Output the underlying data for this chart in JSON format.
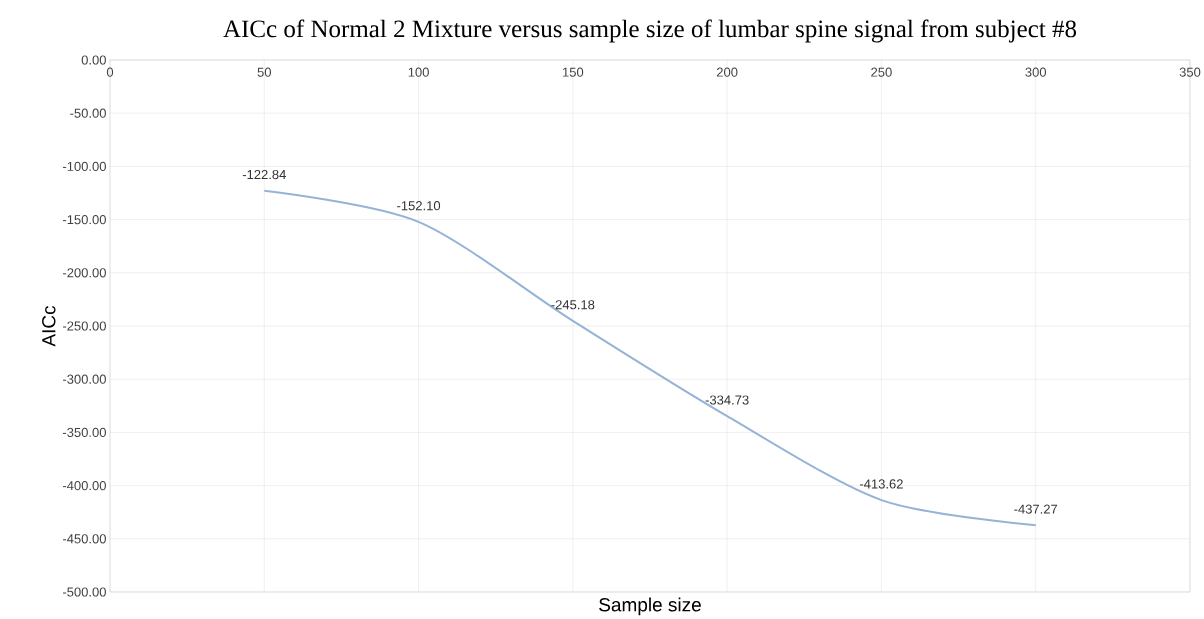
{
  "chart_data": {
    "type": "line",
    "title": "AICc of Normal 2 Mixture versus sample size of lumbar spine signal from subject #8",
    "xlabel": "Sample size",
    "ylabel": "AICc",
    "x": [
      50,
      100,
      150,
      200,
      250,
      300
    ],
    "series": [
      {
        "color": "#95b3d7",
        "values": [
          -122.84,
          -152.1,
          -245.18,
          -334.73,
          -413.62,
          -437.27
        ],
        "value_labels": [
          "-122.84",
          "-152.10",
          "-245.18",
          "-334.73",
          "-413.62",
          "-437.27"
        ]
      }
    ],
    "xlim": [
      0,
      350
    ],
    "xticks": [
      0,
      50,
      100,
      150,
      200,
      250,
      300,
      350
    ],
    "ylim": [
      -500,
      0
    ],
    "yticks": [
      {
        "value": 0,
        "label": "0.00"
      },
      {
        "value": -50,
        "label": "-50.00"
      },
      {
        "value": -100,
        "label": "-100.00"
      },
      {
        "value": -150,
        "label": "-150.00"
      },
      {
        "value": -200,
        "label": "-200.00"
      },
      {
        "value": -250,
        "label": "-250.00"
      },
      {
        "value": -300,
        "label": "-300.00"
      },
      {
        "value": -350,
        "label": "-350.00"
      },
      {
        "value": -400,
        "label": "-400.00"
      },
      {
        "value": -450,
        "label": "-450.00"
      },
      {
        "value": -500,
        "label": "-500.00"
      }
    ],
    "grid": true,
    "marker": "none",
    "line_style": "solid"
  }
}
